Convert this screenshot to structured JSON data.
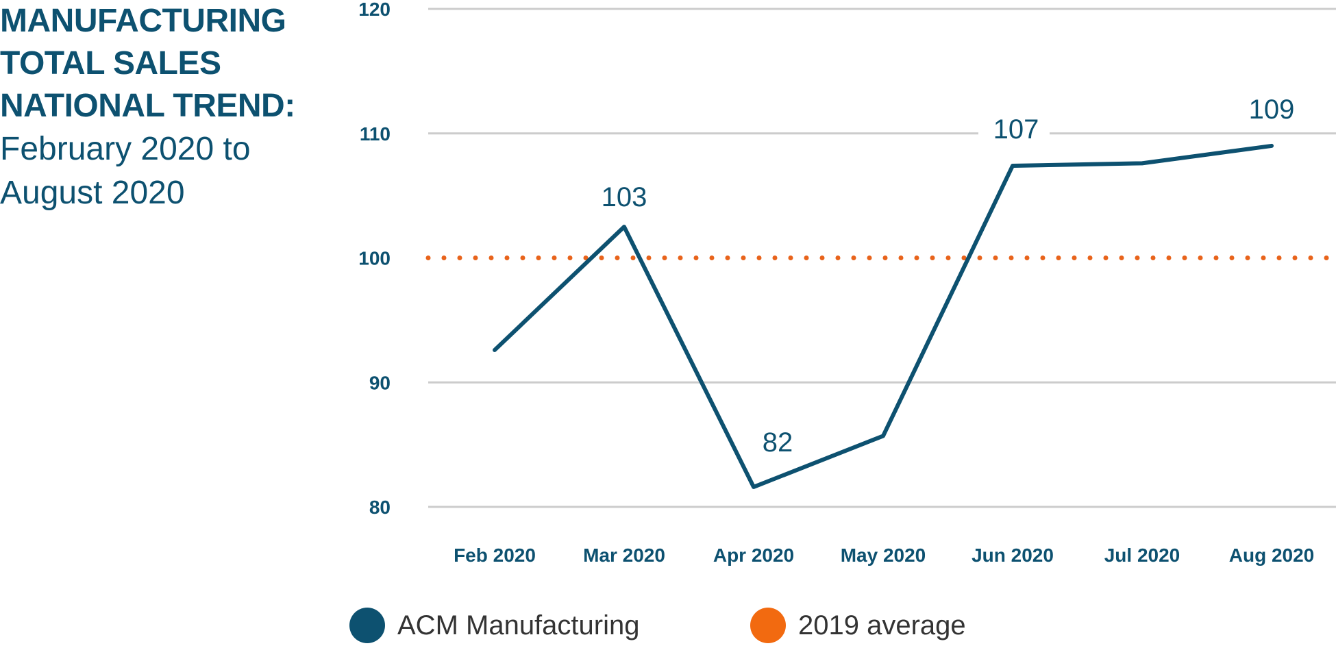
{
  "title": {
    "lines": [
      "MANUFACTURING",
      "TOTAL SALES",
      "NATIONAL TREND:"
    ],
    "subtitle_lines": [
      "February 2020 to",
      "August 2020"
    ]
  },
  "colors": {
    "series": "#0d5170",
    "reference": "#e8631b",
    "grid": "#cccccc",
    "text": "#0d5170"
  },
  "chart_data": {
    "type": "line",
    "title": "MANUFACTURING TOTAL SALES NATIONAL TREND: February 2020 to August 2020",
    "categories": [
      "Feb 2020",
      "Mar 2020",
      "Apr 2020",
      "May 2020",
      "Jun 2020",
      "Jul 2020",
      "Aug 2020"
    ],
    "series": [
      {
        "name": "ACM Manufacturing",
        "values": [
          92.6,
          102.5,
          81.6,
          85.7,
          107.4,
          107.6,
          109.0
        ],
        "labels": [
          "",
          "103",
          "82",
          "",
          "107",
          "",
          "109"
        ]
      }
    ],
    "reference_line": {
      "name": "2019 average",
      "value": 100,
      "style": "dotted"
    },
    "ylim": [
      80,
      120
    ],
    "yticks": [
      "80",
      "90",
      "100",
      "110",
      "120"
    ],
    "grid": true,
    "legend_position": "bottom"
  },
  "legend": [
    {
      "label": "ACM Manufacturing",
      "color": "#0d5170"
    },
    {
      "label": "2019 average",
      "color": "#f26a10"
    }
  ]
}
